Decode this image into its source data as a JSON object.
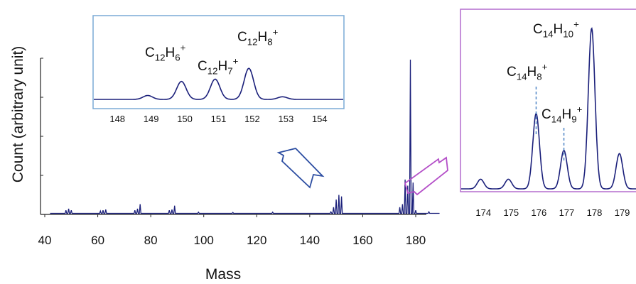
{
  "colors": {
    "spectrum": "#1a1f7a",
    "inset_left_frame": "#7aaad6",
    "inset_right_frame": "#b46ccd",
    "arrow_blue": "#2d4ea2",
    "arrow_purple": "#b44fc8",
    "marker_line": "#4f86c6",
    "axis": "#222222"
  },
  "chart_data": [
    {
      "type": "line",
      "xlabel": "Mass",
      "ylabel": "Count (arbitrary unit)",
      "xlim": [
        40,
        190
      ],
      "xticks": [
        40,
        60,
        80,
        100,
        120,
        140,
        160,
        180
      ],
      "ytick_count": 5,
      "ylim": [
        0,
        1
      ],
      "grid": false,
      "series": [
        {
          "peaks": [
            {
              "mass": 48,
              "height": 0.02
            },
            {
              "mass": 49,
              "height": 0.03
            },
            {
              "mass": 50,
              "height": 0.02
            },
            {
              "mass": 61,
              "height": 0.015
            },
            {
              "mass": 62,
              "height": 0.02
            },
            {
              "mass": 63,
              "height": 0.025
            },
            {
              "mass": 74,
              "height": 0.02
            },
            {
              "mass": 75,
              "height": 0.03
            },
            {
              "mass": 76,
              "height": 0.06
            },
            {
              "mass": 87,
              "height": 0.02
            },
            {
              "mass": 88,
              "height": 0.025
            },
            {
              "mass": 89,
              "height": 0.05
            },
            {
              "mass": 98,
              "height": 0.008
            },
            {
              "mass": 111,
              "height": 0.006
            },
            {
              "mass": 126,
              "height": 0.008
            },
            {
              "mass": 148,
              "height": 0.01
            },
            {
              "mass": 149,
              "height": 0.04
            },
            {
              "mass": 150,
              "height": 0.09
            },
            {
              "mass": 151,
              "height": 0.12
            },
            {
              "mass": 152,
              "height": 0.11
            },
            {
              "mass": 174,
              "height": 0.04
            },
            {
              "mass": 175,
              "height": 0.06
            },
            {
              "mass": 176,
              "height": 0.22
            },
            {
              "mass": 177,
              "height": 0.18
            },
            {
              "mass": 178,
              "height": 1.0
            },
            {
              "mass": 179,
              "height": 0.2
            },
            {
              "mass": 180,
              "height": 0.02
            },
            {
              "mass": 185,
              "height": 0.01
            }
          ]
        }
      ]
    },
    {
      "type": "line",
      "panel": "inset-left",
      "xticks": [
        148,
        149,
        150,
        151,
        152,
        153,
        154
      ],
      "xlim": [
        147.3,
        154.7
      ],
      "annotations": [
        {
          "label": "C12H6+",
          "mass": 150,
          "text": "C",
          "sub": "12",
          "text2": "H",
          "sub2": "6",
          "sup": "+"
        },
        {
          "label": "C12H7+",
          "mass": 151,
          "text": "C",
          "sub": "12",
          "text2": "H",
          "sub2": "7",
          "sup": "+"
        },
        {
          "label": "C12H8+",
          "mass": 152,
          "text": "C",
          "sub": "12",
          "text2": "H",
          "sub2": "8",
          "sup": "+"
        }
      ],
      "peaks": [
        {
          "mass": 148.9,
          "height": 0.12
        },
        {
          "mass": 149.9,
          "height": 0.55
        },
        {
          "mass": 150.9,
          "height": 0.62
        },
        {
          "mass": 151.9,
          "height": 0.95
        },
        {
          "mass": 152.9,
          "height": 0.08
        }
      ]
    },
    {
      "type": "line",
      "panel": "inset-right",
      "xticks": [
        174,
        175,
        176,
        177,
        178,
        179
      ],
      "xlim": [
        173.2,
        179.6
      ],
      "annotations": [
        {
          "label": "C14H8+",
          "mass": 176,
          "text": "C",
          "sub": "14",
          "text2": "H",
          "sub2": "8",
          "sup": "+"
        },
        {
          "label": "C14H9+",
          "mass": 177,
          "text": "C",
          "sub": "14",
          "text2": "H",
          "sub2": "9",
          "sup": "+"
        },
        {
          "label": "C14H10+",
          "mass": 178,
          "text": "C",
          "sub": "14",
          "text2": "H",
          "sub2": "10",
          "sup": "+"
        }
      ],
      "peaks": [
        {
          "mass": 173.9,
          "height": 0.06
        },
        {
          "mass": 174.9,
          "height": 0.06
        },
        {
          "mass": 175.9,
          "height": 0.47
        },
        {
          "mass": 176.9,
          "height": 0.24
        },
        {
          "mass": 177.9,
          "height": 1.0
        },
        {
          "mass": 178.9,
          "height": 0.22
        }
      ]
    }
  ]
}
